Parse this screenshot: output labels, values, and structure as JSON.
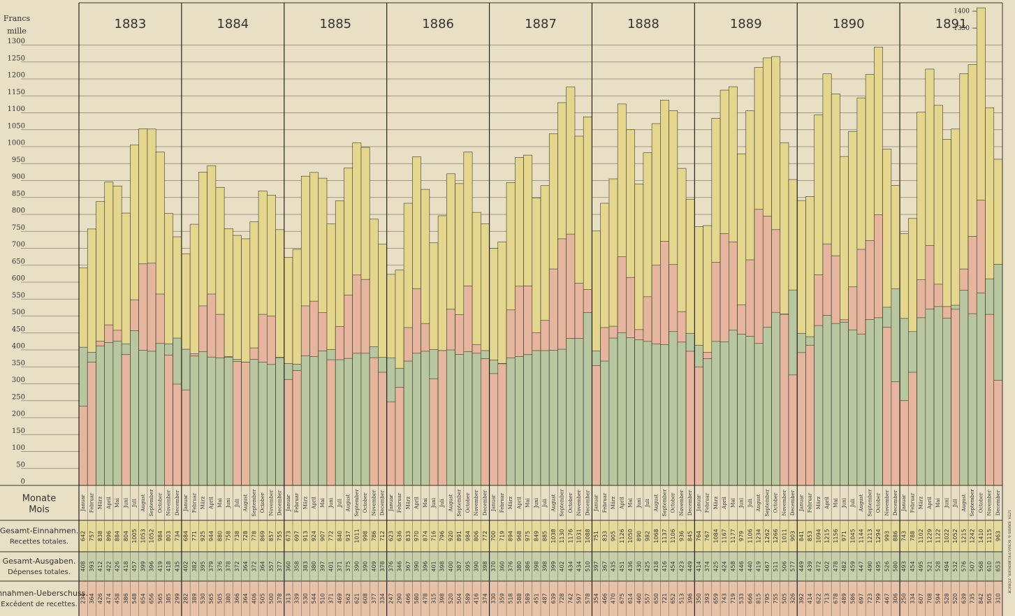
{
  "chart_data": {
    "type": "bar",
    "y_label": [
      "Francs",
      "mille"
    ],
    "years": [
      "1883",
      "1884",
      "1885",
      "1886",
      "1887",
      "1888",
      "1889",
      "1890",
      "1891"
    ],
    "categories": [
      "Januar",
      "Februar",
      "März",
      "April",
      "Mai",
      "Juni",
      "Juli",
      "August",
      "September",
      "October",
      "November",
      "December",
      "Januar",
      "Februar",
      "März",
      "April",
      "Mai",
      "Juni",
      "Juli",
      "August",
      "September",
      "October",
      "November",
      "December",
      "Januar",
      "Februar",
      "März",
      "April",
      "Mai",
      "Juni",
      "Juli",
      "August",
      "September",
      "October",
      "November",
      "December",
      "Januar",
      "Februar",
      "März",
      "April",
      "Mai",
      "Juni",
      "Juli",
      "August",
      "September",
      "October",
      "November",
      "December",
      "Januar",
      "Februar",
      "März",
      "April",
      "Mai",
      "Juni",
      "Juli",
      "August",
      "September",
      "October",
      "November",
      "December",
      "Januar",
      "Februar",
      "März",
      "April",
      "Mai",
      "Juni",
      "Juli",
      "August",
      "September",
      "October",
      "November",
      "December",
      "Januar",
      "Februar",
      "März",
      "April",
      "Mai",
      "Juni",
      "Juli",
      "August",
      "September",
      "October",
      "November",
      "December",
      "Januar",
      "Februar",
      "März",
      "April",
      "Mai",
      "Juni",
      "Juli",
      "August",
      "September",
      "October",
      "November",
      "December",
      "Januar",
      "Februar",
      "März",
      "April",
      "Mai",
      "Juni",
      "Juli",
      "August",
      "September",
      "October",
      "November",
      "December"
    ],
    "month_row_label": [
      "Monate",
      "Mois"
    ],
    "series": [
      {
        "name": "Gesamt-Einnahmen.",
        "name_fr": "Recettes totales.",
        "color": "#e4d68c",
        "values": [
          642,
          757,
          838,
          896,
          884,
          804,
          1005,
          1053,
          1052,
          984,
          803,
          734,
          684,
          771,
          925,
          944,
          880,
          758,
          738,
          728,
          778,
          869,
          857,
          755,
          673,
          697,
          913,
          924,
          907,
          772,
          840,
          937,
          1011,
          998,
          786,
          712,
          623,
          636,
          833,
          970,
          874,
          716,
          796,
          920,
          891,
          984,
          806,
          772,
          700,
          719,
          894,
          968,
          975,
          849,
          885,
          1038,
          1130,
          1176,
          1031,
          1088,
          751,
          833,
          905,
          1126,
          1050,
          890,
          982,
          1068,
          1137,
          1106,
          936,
          845,
          764,
          767,
          1084,
          1167,
          1177,
          979,
          1106,
          1234,
          1262,
          1266,
          1011,
          903,
          841,
          853,
          1094,
          1215,
          1156,
          971,
          1045,
          1144,
          1213,
          1294,
          993,
          886,
          743,
          788,
          1102,
          1229,
          1122,
          1022,
          1052,
          1215,
          1242,
          1410,
          1115,
          963
        ]
      },
      {
        "name": "Gesamt-Ausgaben.",
        "name_fr": "Dépenses totales.",
        "color": "#b8c79f",
        "values": [
          408,
          393,
          412,
          422,
          426,
          418,
          457,
          399,
          396,
          419,
          418,
          435,
          402,
          382,
          395,
          379,
          376,
          378,
          372,
          364,
          372,
          364,
          357,
          377,
          360,
          358,
          383,
          380,
          397,
          401,
          371,
          375,
          390,
          390,
          409,
          378,
          376,
          346,
          367,
          390,
          396,
          401,
          398,
          400,
          387,
          395,
          390,
          398,
          370,
          360,
          376,
          380,
          386,
          398,
          398,
          399,
          402,
          434,
          434,
          510,
          397,
          367,
          435,
          451,
          436,
          430,
          425,
          418,
          416,
          454,
          423,
          449,
          414,
          374,
          425,
          424,
          458,
          446,
          440,
          419,
          467,
          511,
          506,
          577,
          449,
          439,
          472,
          502,
          478,
          482,
          459,
          447,
          490,
          495,
          526,
          580,
          493,
          454,
          495,
          521,
          528,
          494,
          532,
          576,
          507,
          568,
          610,
          653
        ]
      },
      {
        "name": "Einnahmen-Ueberschuss.",
        "name_fr": "Excédent de recettes.",
        "color": "#e6b59d",
        "values": [
          234,
          364,
          426,
          474,
          458,
          386,
          548,
          654,
          656,
          565,
          385,
          299,
          282,
          389,
          530,
          565,
          505,
          380,
          366,
          364,
          406,
          505,
          500,
          378,
          313,
          339,
          530,
          544,
          510,
          371,
          469,
          562,
          621,
          608,
          377,
          334,
          247,
          290,
          466,
          580,
          478,
          315,
          398,
          520,
          504,
          589,
          416,
          374,
          330,
          359,
          518,
          588,
          589,
          451,
          487,
          639,
          728,
          742,
          597,
          578,
          354,
          466,
          470,
          675,
          614,
          460,
          557,
          650,
          721,
          652,
          513,
          396,
          350,
          393,
          659,
          743,
          719,
          533,
          666,
          815,
          795,
          755,
          505,
          326,
          392,
          414,
          622,
          713,
          678,
          489,
          586,
          697,
          723,
          799,
          467,
          306,
          250,
          334,
          607,
          708,
          594,
          528,
          520,
          639,
          735,
          842,
          505,
          310
        ]
      }
    ],
    "ylim": [
      0,
      1400
    ],
    "yticks": [
      0,
      50,
      100,
      150,
      200,
      250,
      300,
      350,
      400,
      450,
      500,
      550,
      600,
      650,
      700,
      750,
      800,
      850,
      900,
      950,
      1000,
      1050,
      1100,
      1150,
      1200,
      1250,
      1300
    ],
    "upper_ticks": [
      1350,
      1400
    ],
    "grid": true,
    "credit": "LITH. KREBS & SCHAUFELBERGER, ZÜRICH"
  }
}
